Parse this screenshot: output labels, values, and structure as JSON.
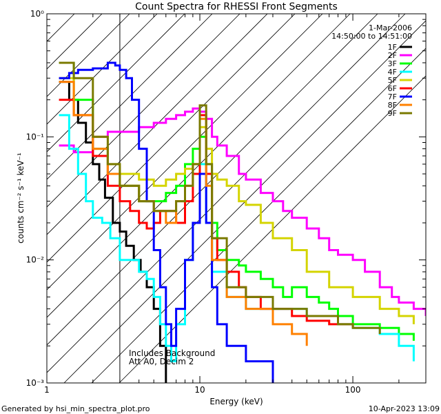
{
  "chart_data": {
    "type": "line",
    "title": "Count Spectra for RHESSI Front Segments",
    "xlabel": "Energy (keV)",
    "ylabel": "counts cm⁻² s⁻¹ keV⁻¹",
    "xscale": "log",
    "yscale": "log",
    "xlim": [
      1,
      300
    ],
    "ylim": [
      0.001,
      1
    ],
    "x_ticks": [
      {
        "value": 1,
        "label": "1"
      },
      {
        "value": 10,
        "label": "10"
      },
      {
        "value": 100,
        "label": "100"
      }
    ],
    "y_ticks": [
      {
        "value": 0.001,
        "label": "10⁻³"
      },
      {
        "value": 0.01,
        "label": "10⁻²"
      },
      {
        "value": 0.1,
        "label": "10⁻¹"
      },
      {
        "value": 1,
        "label": "10⁰"
      }
    ],
    "hatched_region_kev": [
      1,
      3
    ],
    "legend_header": [
      "1-Mar-2006",
      "14:50:00 to 14:51:00"
    ],
    "annotations": [
      "Includes Background",
      "Att A0, Decim 2"
    ],
    "series": [
      {
        "name": "1F",
        "color": "#000000",
        "x": [
          1.2,
          1.4,
          1.6,
          1.8,
          2.0,
          2.2,
          2.4,
          2.7,
          3.0,
          3.3,
          3.7,
          4.1,
          4.5,
          5.0,
          5.5,
          6.0
        ],
        "y": [
          0.28,
          0.2,
          0.13,
          0.09,
          0.06,
          0.045,
          0.032,
          0.02,
          0.017,
          0.013,
          0.01,
          0.008,
          0.006,
          0.004,
          0.002,
          0.001
        ]
      },
      {
        "name": "2F",
        "color": "#ff00ff",
        "x": [
          1.2,
          1.5,
          2.0,
          2.5,
          3.0,
          4.0,
          5.0,
          6.0,
          7.0,
          8.0,
          9.0,
          10.0,
          11.0,
          12.0,
          13.0,
          15.0,
          18.0,
          20.0,
          25.0,
          30.0,
          35.0,
          40.0,
          50.0,
          60.0,
          70.0,
          80.0,
          100.0,
          120.0,
          150.0,
          180.0,
          200.0,
          250.0,
          300.0
        ],
        "y": [
          0.085,
          0.075,
          0.1,
          0.11,
          0.11,
          0.12,
          0.13,
          0.14,
          0.15,
          0.16,
          0.17,
          0.16,
          0.14,
          0.1,
          0.085,
          0.07,
          0.05,
          0.045,
          0.035,
          0.03,
          0.025,
          0.022,
          0.018,
          0.015,
          0.012,
          0.011,
          0.01,
          0.008,
          0.006,
          0.005,
          0.0045,
          0.004,
          0.0035
        ]
      },
      {
        "name": "3F",
        "color": "#00ff00",
        "x": [
          1.2,
          1.5,
          2.0,
          2.5,
          3.0,
          4.0,
          5.0,
          6.0,
          7.0,
          8.0,
          9.0,
          10.0,
          11.0,
          12.0,
          13.0,
          15.0,
          18.0,
          20.0,
          25.0,
          30.0,
          35.0,
          40.0,
          50.0,
          60.0,
          70.0,
          80.0,
          100.0,
          120.0,
          150.0,
          200.0,
          250.0
        ],
        "y": [
          0.4,
          0.2,
          0.08,
          0.05,
          0.04,
          0.03,
          0.03,
          0.035,
          0.04,
          0.06,
          0.08,
          0.1,
          0.06,
          0.02,
          0.012,
          0.01,
          0.009,
          0.008,
          0.007,
          0.006,
          0.005,
          0.006,
          0.005,
          0.0045,
          0.004,
          0.0035,
          0.003,
          0.003,
          0.0028,
          0.0025,
          0.0022
        ]
      },
      {
        "name": "4F",
        "color": "#00ffff",
        "x": [
          1.2,
          1.4,
          1.6,
          1.8,
          2.0,
          2.3,
          2.6,
          3.0,
          3.5,
          4.0,
          4.5,
          5.0,
          5.5,
          6.0,
          6.5,
          7.0,
          8.0,
          9.0,
          10.0,
          11.0,
          12.0,
          15.0,
          20.0,
          30.0,
          50.0,
          80.0,
          100.0,
          150.0,
          200.0,
          250.0
        ],
        "y": [
          0.15,
          0.08,
          0.05,
          0.03,
          0.022,
          0.02,
          0.015,
          0.01,
          0.01,
          0.008,
          0.007,
          0.005,
          0.003,
          0.002,
          0.0015,
          0.003,
          0.01,
          0.02,
          0.06,
          0.02,
          0.008,
          0.005,
          0.004,
          0.004,
          0.0035,
          0.003,
          0.0028,
          0.0025,
          0.002,
          0.0015
        ]
      },
      {
        "name": "5F",
        "color": "#d4d400",
        "x": [
          1.2,
          1.5,
          2.0,
          2.5,
          3.0,
          4.0,
          5.0,
          6.0,
          7.0,
          8.0,
          9.0,
          10.0,
          11.0,
          12.0,
          13.0,
          15.0,
          18.0,
          20.0,
          25.0,
          30.0,
          40.0,
          50.0,
          70.0,
          100.0,
          150.0,
          200.0,
          250.0
        ],
        "y": [
          0.3,
          0.15,
          0.1,
          0.06,
          0.05,
          0.045,
          0.04,
          0.045,
          0.05,
          0.055,
          0.06,
          0.12,
          0.08,
          0.05,
          0.045,
          0.04,
          0.03,
          0.028,
          0.02,
          0.015,
          0.012,
          0.008,
          0.006,
          0.005,
          0.004,
          0.0035,
          0.003
        ]
      },
      {
        "name": "6F",
        "color": "#ff0000",
        "x": [
          1.2,
          1.5,
          2.0,
          2.5,
          3.0,
          3.5,
          4.0,
          4.5,
          5.0,
          5.5,
          6.0,
          7.0,
          8.0,
          9.0,
          10.0,
          11.0,
          12.0,
          13.0,
          15.0,
          18.0,
          20.0,
          25.0,
          30.0,
          40.0,
          50.0,
          70.0,
          100.0
        ],
        "y": [
          0.2,
          0.15,
          0.07,
          0.04,
          0.03,
          0.025,
          0.02,
          0.018,
          0.02,
          0.025,
          0.025,
          0.02,
          0.03,
          0.05,
          0.15,
          0.05,
          0.015,
          0.01,
          0.008,
          0.006,
          0.005,
          0.004,
          0.004,
          0.0035,
          0.0032,
          0.003,
          0.0028
        ]
      },
      {
        "name": "7F",
        "color": "#0000ff",
        "x": [
          1.2,
          1.4,
          1.6,
          1.8,
          2.0,
          2.2,
          2.5,
          2.8,
          3.0,
          3.3,
          3.6,
          4.0,
          4.5,
          5.0,
          5.5,
          6.0,
          6.5,
          7.0,
          8.0,
          9.0,
          10.0,
          11.0,
          12.0,
          13.0,
          15.0,
          20.0,
          30.0
        ],
        "y": [
          0.3,
          0.33,
          0.35,
          0.35,
          0.36,
          0.36,
          0.4,
          0.38,
          0.35,
          0.3,
          0.2,
          0.08,
          0.03,
          0.012,
          0.006,
          0.003,
          0.002,
          0.004,
          0.01,
          0.02,
          0.05,
          0.02,
          0.006,
          0.003,
          0.002,
          0.0015,
          0.001
        ]
      },
      {
        "name": "8F",
        "color": "#ff8000",
        "x": [
          1.2,
          1.5,
          2.0,
          2.5,
          3.0,
          4.0,
          5.0,
          6.0,
          7.0,
          8.0,
          9.0,
          10.0,
          11.0,
          12.0,
          15.0,
          20.0,
          30.0,
          40.0,
          50.0
        ],
        "y": [
          0.28,
          0.15,
          0.08,
          0.05,
          0.04,
          0.03,
          0.025,
          0.02,
          0.03,
          0.04,
          0.06,
          0.14,
          0.04,
          0.01,
          0.005,
          0.004,
          0.003,
          0.0025,
          0.002
        ]
      },
      {
        "name": "9F",
        "color": "#7a7a00",
        "x": [
          1.2,
          1.5,
          2.0,
          2.5,
          3.0,
          4.0,
          5.0,
          6.0,
          7.0,
          8.0,
          9.0,
          10.0,
          11.0,
          12.0,
          15.0,
          20.0,
          30.0,
          50.0,
          80.0,
          100.0,
          150.0
        ],
        "y": [
          0.4,
          0.3,
          0.1,
          0.06,
          0.04,
          0.03,
          0.025,
          0.025,
          0.03,
          0.04,
          0.06,
          0.18,
          0.06,
          0.015,
          0.006,
          0.005,
          0.004,
          0.0035,
          0.003,
          0.0028,
          0.0025
        ]
      }
    ]
  },
  "footer": {
    "left": "Generated by hsi_min_spectra_plot.pro",
    "right": "10-Apr-2023 13:09"
  }
}
